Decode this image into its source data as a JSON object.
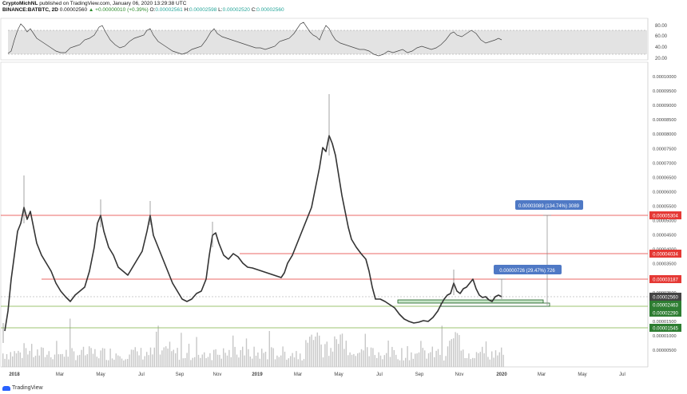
{
  "header": {
    "author": "CryptoMichNL",
    "published": "published on TradingView.com, January 06, 2020 13:29:38 UTC",
    "symbol": "BINANCE:BATBTC, 2D",
    "last": "0.00002560",
    "change": "▲ +0.00000010 (+0.39%)",
    "o_label": "O:",
    "o": "0.00002561",
    "h_label": "H:",
    "h": "0.00002598",
    "l_label": "L:",
    "l": "0.00002520",
    "c_label": "C:",
    "c": "0.00002560"
  },
  "footer": {
    "brand": "TradingView"
  },
  "rsi": {
    "ticks": [
      "80.00",
      "60.00",
      "40.00",
      "20.00"
    ]
  },
  "price_axis": {
    "ticks": [
      "0.00010000",
      "0.00009500",
      "0.00009000",
      "0.00008500",
      "0.00008000",
      "0.00007500",
      "0.00007000",
      "0.00006500",
      "0.00006000",
      "0.00005500",
      "0.00005000",
      "0.00004500",
      "0.00004000",
      "0.00003500",
      "0.00003000",
      "0.00002500",
      "0.00002000",
      "0.00001500",
      "0.00001000",
      "0.00000500"
    ]
  },
  "time_axis": [
    "2018",
    "Mar",
    "May",
    "Jul",
    "Sep",
    "Nov",
    "2019",
    "Mar",
    "May",
    "Jul",
    "Sep",
    "Nov",
    "2020",
    "Mar",
    "May",
    "Jul"
  ],
  "levels": [
    {
      "label": "0.00005304",
      "color": "#e53935"
    },
    {
      "label": "0.00004034",
      "color": "#e53935"
    },
    {
      "label": "0.00003187",
      "color": "#e53935"
    },
    {
      "label": "0.00002560",
      "color": "#444444"
    },
    {
      "label": "0.00002463",
      "color": "#2e7d32"
    },
    {
      "label": "0.00002290",
      "color": "#2e7d32"
    },
    {
      "label": "0.00001545",
      "color": "#2e7d32"
    }
  ],
  "measures": [
    {
      "text": "0.00003089 (134.74%) 3089"
    },
    {
      "text": "0.00000726 (29.47%) 726"
    }
  ]
}
